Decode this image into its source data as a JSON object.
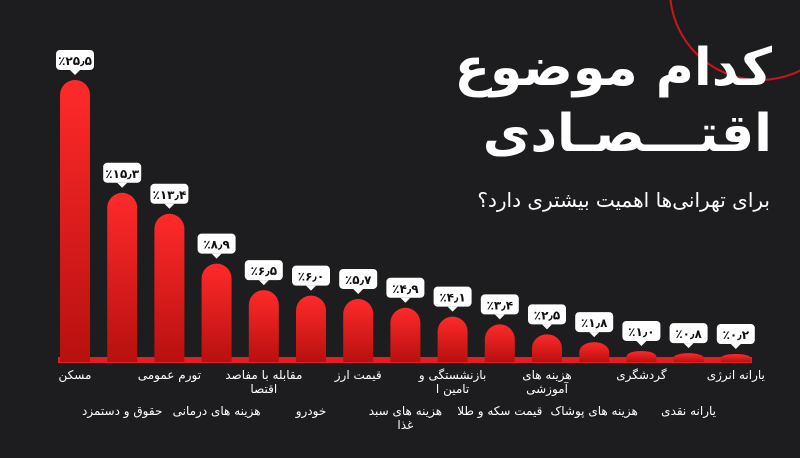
{
  "header": {
    "title_line1": "کدام موضوع",
    "title_line2": "اقتـــصـادی",
    "subtitle": "برای تهرانی‌ها اهمیت بیشتری دارد؟"
  },
  "colors": {
    "bar": "#e31e24",
    "bar_dark": "#a5100f",
    "background": "#1d1d1f",
    "badge": "#ffffff"
  },
  "chart_data": {
    "type": "bar",
    "unit": "%",
    "categories": [
      "مسکن",
      "حقوق و دستمزد",
      "تورم عمومی",
      "هزینه های درمانی",
      "مقابله با مفاصد اقتصا",
      "خودرو",
      "قیمت ارز",
      "هزینه های سبد غذا",
      "بازنشستگی و تامین ا",
      "قیمت سکه و طلا",
      "هزینه های آموزشی",
      "هزینه های پوشاک",
      "گردشگری",
      "یارانه نقدی",
      "یارانه انرژی"
    ],
    "values": [
      25.5,
      15.3,
      13.4,
      8.9,
      6.5,
      6.0,
      5.7,
      4.9,
      4.1,
      3.4,
      2.5,
      1.8,
      1.0,
      0.8,
      0.2
    ],
    "value_labels": [
      "٪۲۵٫۵",
      "٪۱۵٫۳",
      "٪۱۳٫۴",
      "٪۸٫۹",
      "٪۶٫۵",
      "٪۶٫۰",
      "٪۵٫۷",
      "٪۴٫۹",
      "٪۴٫۱",
      "٪۳٫۴",
      "٪۲٫۵",
      "٪۱٫۸",
      "٪۱٫۰",
      "٪۰٫۸",
      "٪۰٫۲"
    ],
    "ylim": [
      0,
      25.5
    ],
    "grid": false
  }
}
